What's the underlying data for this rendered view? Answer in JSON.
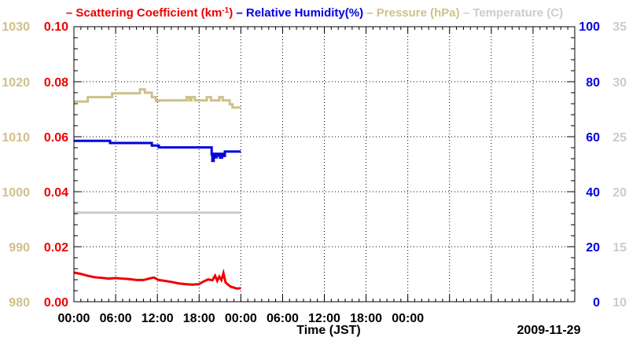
{
  "chart_data": {
    "type": "line",
    "title_parts": [
      {
        "text": "– Scattering Coefficient (km",
        "color": "#ee0000"
      },
      {
        "text": "-1",
        "color": "#ee0000",
        "sup": true
      },
      {
        "text": ") ",
        "color": "#ee0000"
      },
      {
        "text": "– Relative Humidity(%) ",
        "color": "#0000dd"
      },
      {
        "text": "– Pressure (hPa) ",
        "color": "#cfc08a"
      },
      {
        "text": "– Temperature (C)",
        "color": "#cccccc"
      }
    ],
    "xlabel": "Time (JST)",
    "date_label": "2009-11-29",
    "x_range": [
      0,
      72
    ],
    "x_ticks": [
      0,
      6,
      12,
      18,
      24,
      30,
      36,
      42,
      48,
      54,
      60,
      66,
      72
    ],
    "x_tick_labels": [
      "00:00",
      "06:00",
      "12:00",
      "18:00",
      "00:00",
      "06:00",
      "12:00",
      "18:00",
      "00:00"
    ],
    "x_label_positions": [
      0,
      6,
      12,
      18,
      24,
      30,
      36,
      42,
      48
    ],
    "axes": {
      "pressure": {
        "range": [
          980,
          1030
        ],
        "ticks": [
          980,
          990,
          1000,
          1010,
          1020,
          1030
        ],
        "labels": [
          "980",
          "990",
          "1000",
          "1010",
          "1020",
          "1030"
        ],
        "color": "#cfc08a"
      },
      "scattering": {
        "range": [
          0,
          0.1
        ],
        "ticks": [
          0,
          0.02,
          0.04,
          0.06,
          0.08,
          0.1
        ],
        "labels": [
          "0.00",
          "0.02",
          "0.04",
          "0.06",
          "0.08",
          "0.10"
        ],
        "color": "#ee0000"
      },
      "humidity": {
        "range": [
          0,
          100
        ],
        "ticks": [
          0,
          20,
          40,
          60,
          80,
          100
        ],
        "labels": [
          "0",
          "20",
          "40",
          "60",
          "80",
          "100"
        ],
        "color": "#0000dd"
      },
      "temperature": {
        "range": [
          10,
          35
        ],
        "ticks": [
          10,
          15,
          20,
          25,
          30,
          35
        ],
        "labels": [
          "10",
          "15",
          "20",
          "25",
          "30",
          "35"
        ],
        "color": "#cccccc"
      }
    },
    "series": [
      {
        "name": "Pressure (hPa)",
        "axis": "pressure",
        "color": "#cfc08a",
        "step": true,
        "x": [
          0,
          2,
          5.5,
          9.5,
          10.2,
          11.2,
          11.8,
          12.3,
          15.8,
          16.2,
          16.6,
          16.9,
          17.4,
          18.7,
          19.1,
          19.7,
          20.3,
          20.9,
          21.4,
          22.1,
          22.4,
          22.8,
          24
        ],
        "y": [
          1016.4,
          1017.2,
          1017.9,
          1018.6,
          1018.0,
          1017.2,
          1016.5,
          1016.6,
          1016.6,
          1017.2,
          1016.6,
          1017.2,
          1016.6,
          1016.6,
          1017.2,
          1016.6,
          1016.6,
          1017.2,
          1016.6,
          1016.6,
          1015.9,
          1015.3,
          1015.3
        ]
      },
      {
        "name": "Relative Humidity(%)",
        "axis": "humidity",
        "color": "#0000dd",
        "step": true,
        "x": [
          0,
          5.2,
          11.2,
          12.2,
          19.8,
          19.9,
          20.1,
          20.3,
          20.5,
          20.7,
          20.8,
          21.0,
          21.3,
          21.5,
          21.7,
          24
        ],
        "y": [
          58.5,
          57.7,
          56.8,
          56.1,
          53.5,
          51.2,
          53.8,
          52.5,
          53.8,
          53.1,
          53.8,
          52.4,
          53.8,
          53.0,
          54.6,
          54.6
        ]
      },
      {
        "name": "Temperature (C)",
        "axis": "temperature",
        "color": "#cccccc",
        "step": false,
        "x": [
          0,
          24
        ],
        "y": [
          18.1,
          18.1
        ]
      },
      {
        "name": "Scattering Coefficient (km-1)",
        "axis": "scattering",
        "color": "#ee0000",
        "step": false,
        "x": [
          0,
          1,
          2,
          3,
          4,
          5,
          6,
          7,
          8,
          9,
          10,
          10.8,
          11.5,
          12.2,
          13,
          14,
          15,
          16,
          17,
          18,
          18.6,
          19.3,
          19.9,
          20.3,
          20.6,
          20.9,
          21.2,
          21.5,
          21.8,
          22.2,
          22.6,
          23,
          23.4,
          24
        ],
        "y": [
          0.0106,
          0.0101,
          0.0094,
          0.0089,
          0.0087,
          0.0084,
          0.0086,
          0.0084,
          0.0082,
          0.0079,
          0.0079,
          0.0084,
          0.0088,
          0.0079,
          0.0076,
          0.0072,
          0.0067,
          0.0064,
          0.0062,
          0.0064,
          0.0073,
          0.0081,
          0.0078,
          0.0095,
          0.0076,
          0.0091,
          0.0079,
          0.0104,
          0.007,
          0.0061,
          0.0054,
          0.0051,
          0.0048,
          0.0049
        ]
      }
    ]
  }
}
